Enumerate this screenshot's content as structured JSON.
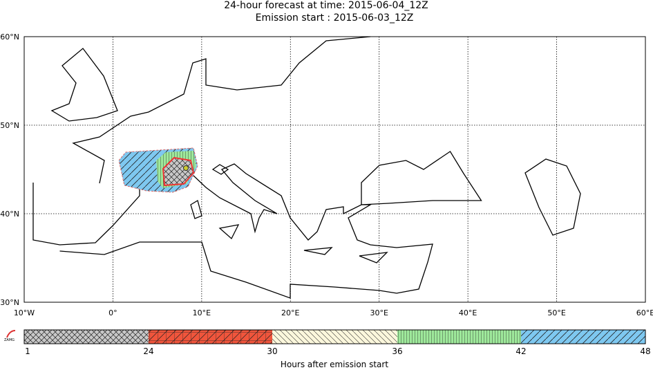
{
  "header": {
    "title": "24-hour forecast at time: 2015-06-04_12Z",
    "subtitle": "Emission start : 2015-06-03_12Z"
  },
  "map": {
    "lat_labels": [
      "60°N",
      "50°N",
      "40°N",
      "30°N"
    ],
    "lon_labels": [
      "10°W",
      "0°",
      "10°E",
      "20°E",
      "30°E",
      "40°E",
      "50°E",
      "60°E"
    ]
  },
  "legend": {
    "ticks": [
      "1",
      "24",
      "30",
      "36",
      "42",
      "48"
    ],
    "label": "Hours after emission start",
    "logo": "ZAMG"
  }
}
